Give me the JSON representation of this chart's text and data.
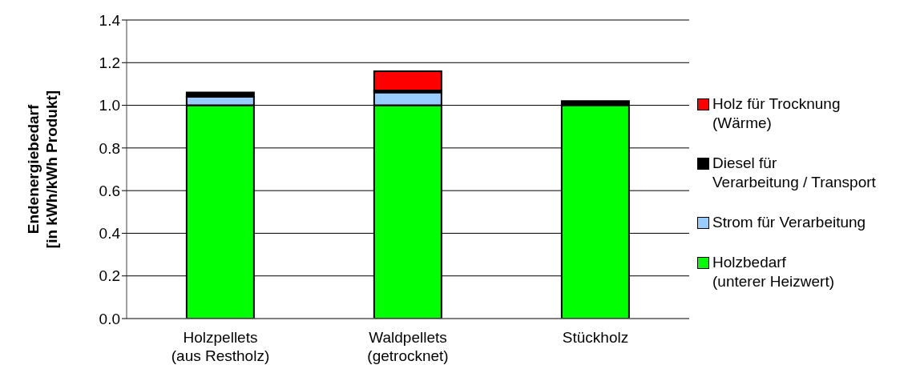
{
  "chart_data": {
    "type": "bar",
    "stacked": true,
    "ylabel": "Endenergiebedarf\n[in kWh/kWh Produkt]",
    "categories": [
      "Holzpellets\n(aus Restholz)",
      "Waldpellets\n(getrocknet)",
      "Stückholz"
    ],
    "series": [
      {
        "name": "Holzbedarf\n(unterer Heizwert)",
        "color": "#00ff00",
        "values": [
          1.0,
          1.0,
          1.0
        ]
      },
      {
        "name": "Strom für Verarbeitung",
        "color": "#99ccff",
        "values": [
          0.04,
          0.06,
          0
        ]
      },
      {
        "name": "Diesel für\nVerarbeitung / Transport",
        "color": "#000000",
        "values": [
          0.02,
          0.01,
          0.02
        ]
      },
      {
        "name": "Holz für Trocknung\n(Wärme)",
        "color": "#ff0000",
        "values": [
          0,
          0.09,
          0
        ]
      }
    ],
    "ylim": [
      0,
      1.4
    ],
    "yticks": [
      {
        "value": 0,
        "label": "0.0"
      },
      {
        "value": 0.2,
        "label": "0.2"
      },
      {
        "value": 0.4,
        "label": "0.4"
      },
      {
        "value": 0.6,
        "label": "0.6"
      },
      {
        "value": 0.8,
        "label": "0.8"
      },
      {
        "value": 1.0,
        "label": "1.0"
      },
      {
        "value": 1.2,
        "label": "1.2"
      },
      {
        "value": 1.4,
        "label": "1.4"
      }
    ],
    "grid": "y",
    "legend": "right"
  }
}
